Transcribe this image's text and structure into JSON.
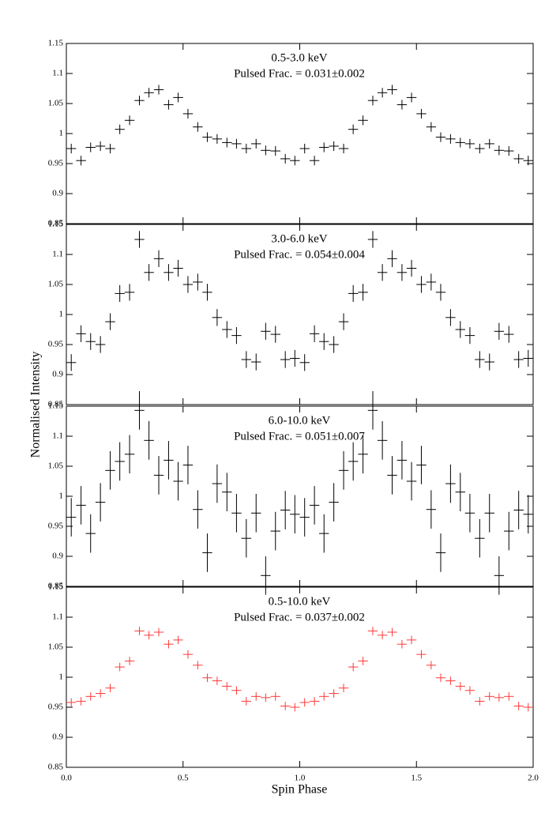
{
  "ylabel": "Normalised Intensity",
  "xlabel": "Spin Phase",
  "xlim": [
    0,
    2
  ],
  "xticks": [
    {
      "value": 0,
      "label": "0.0"
    },
    0.5,
    {
      "value": 1,
      "label": "1.0"
    },
    1.5,
    {
      "value": 2,
      "label": "2.0"
    }
  ],
  "x": [
    0.021,
    0.063,
    0.104,
    0.146,
    0.188,
    0.229,
    0.271,
    0.313,
    0.354,
    0.396,
    0.438,
    0.479,
    0.521,
    0.563,
    0.604,
    0.646,
    0.688,
    0.729,
    0.771,
    0.813,
    0.854,
    0.896,
    0.938,
    0.979,
    1.021,
    1.063,
    1.104,
    1.146,
    1.188,
    1.229,
    1.271,
    1.313,
    1.354,
    1.396,
    1.438,
    1.479,
    1.521,
    1.563,
    1.604,
    1.646,
    1.688,
    1.729,
    1.771,
    1.813,
    1.854,
    1.896,
    1.938,
    1.979
  ],
  "xerr": 0.021,
  "chart_data": [
    {
      "type": "errorbar",
      "title": "0.5-3.0 keV",
      "subtitle": "Pulsed Frac. = 0.031±0.002",
      "series": [
        {
          "color": "#000000",
          "error": 0.008,
          "values": [
            0.975,
            0.955,
            0.977,
            0.979,
            0.975,
            1.007,
            1.022,
            1.055,
            1.068,
            1.073,
            1.048,
            1.06,
            1.033,
            1.011,
            0.994,
            0.991,
            0.985,
            0.983,
            0.975,
            0.983,
            0.972,
            0.971,
            0.958,
            0.955,
            0.975,
            0.955,
            0.977,
            0.979,
            0.975,
            1.007,
            1.022,
            1.055,
            1.068,
            1.073,
            1.048,
            1.06,
            1.033,
            1.011,
            0.994,
            0.991,
            0.985,
            0.983,
            0.975,
            0.983,
            0.972,
            0.971,
            0.958,
            0.955
          ]
        }
      ],
      "ylim": [
        0.85,
        1.15
      ],
      "yticks": [
        0.85,
        0.9,
        0.95,
        1,
        1.05,
        1.1,
        1.15
      ]
    },
    {
      "type": "errorbar",
      "title": "3.0-6.0 keV",
      "subtitle": "Pulsed Frac. = 0.054±0.004",
      "series": [
        {
          "color": "#000000",
          "error": 0.014,
          "values": [
            0.92,
            0.968,
            0.955,
            0.95,
            0.988,
            1.035,
            1.037,
            1.125,
            1.07,
            1.093,
            1.07,
            1.077,
            1.05,
            1.054,
            1.037,
            0.995,
            0.975,
            0.965,
            0.925,
            0.921,
            0.972,
            0.967,
            0.925,
            0.927,
            0.92,
            0.968,
            0.955,
            0.95,
            0.988,
            1.035,
            1.037,
            1.125,
            1.07,
            1.093,
            1.07,
            1.077,
            1.05,
            1.054,
            1.037,
            0.995,
            0.975,
            0.965,
            0.925,
            0.921,
            0.972,
            0.967,
            0.925,
            0.927
          ]
        }
      ],
      "ylim": [
        0.85,
        1.15
      ],
      "yticks": [
        0.85,
        0.9,
        0.95,
        1,
        1.05,
        1.1,
        1.15
      ]
    },
    {
      "type": "errorbar",
      "title": "6.0-10.0 keV",
      "subtitle": "Pulsed Frac. = 0.051±0.007",
      "series": [
        {
          "color": "#000000",
          "error": 0.032,
          "values": [
            0.965,
            0.985,
            0.938,
            0.99,
            1.043,
            1.058,
            1.07,
            1.143,
            1.093,
            1.035,
            1.06,
            1.025,
            1.052,
            0.978,
            0.906,
            1.021,
            1.007,
            0.972,
            0.93,
            0.972,
            0.868,
            0.942,
            0.977,
            0.97,
            0.965,
            0.985,
            0.938,
            0.99,
            1.043,
            1.058,
            1.07,
            1.143,
            1.093,
            1.035,
            1.06,
            1.025,
            1.052,
            0.978,
            0.906,
            1.021,
            1.007,
            0.972,
            0.93,
            0.972,
            0.868,
            0.942,
            0.977,
            0.97
          ]
        }
      ],
      "ylim": [
        0.85,
        1.15
      ],
      "yticks": [
        0.85,
        0.9,
        0.95,
        1,
        1.05,
        1.1,
        1.15
      ]
    },
    {
      "type": "errorbar",
      "title": "0.5-10.0 keV",
      "subtitle": "Pulsed Frac. = 0.037±0.002",
      "series": [
        {
          "color": "#ff3838",
          "error": 0.007,
          "values": [
            0.958,
            0.96,
            0.968,
            0.973,
            0.982,
            1.017,
            1.027,
            1.077,
            1.07,
            1.075,
            1.055,
            1.062,
            1.038,
            1.02,
            0.999,
            0.994,
            0.985,
            0.978,
            0.96,
            0.968,
            0.966,
            0.968,
            0.952,
            0.95,
            0.958,
            0.96,
            0.968,
            0.973,
            0.982,
            1.017,
            1.027,
            1.077,
            1.07,
            1.075,
            1.055,
            1.062,
            1.038,
            1.02,
            0.999,
            0.994,
            0.985,
            0.978,
            0.96,
            0.968,
            0.966,
            0.968,
            0.952,
            0.95
          ]
        }
      ],
      "ylim": [
        0.85,
        1.15
      ],
      "yticks": [
        0.85,
        0.9,
        0.95,
        1,
        1.05,
        1.1,
        1.15
      ]
    }
  ]
}
